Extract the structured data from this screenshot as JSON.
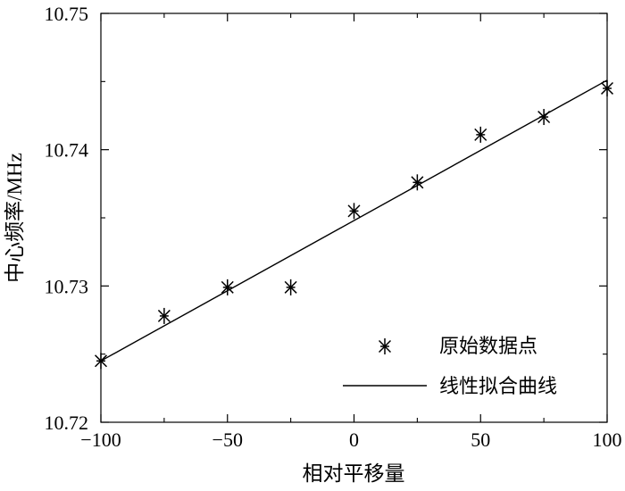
{
  "chart_data": {
    "type": "scatter",
    "xlabel": "相对平移量",
    "ylabel": "中心频率/MHz",
    "xlim": [
      -100,
      100
    ],
    "ylim": [
      10.72,
      10.75
    ],
    "xticks": [
      -100,
      -50,
      0,
      50,
      100
    ],
    "xtick_labels": [
      "−100",
      "−50",
      "0",
      "50",
      "100"
    ],
    "yticks": [
      10.72,
      10.73,
      10.74,
      10.75
    ],
    "ytick_labels": [
      "10.72",
      "10.73",
      "10.74",
      "10.75"
    ],
    "grid": false,
    "legend_position": "bottom-right",
    "series": [
      {
        "name": "原始数据点",
        "kind": "scatter",
        "marker": "asterisk",
        "color": "#000000",
        "x": [
          -100,
          -75,
          -50,
          -25,
          0,
          25,
          50,
          75,
          100
        ],
        "y": [
          10.7245,
          10.7278,
          10.7299,
          10.7299,
          10.7355,
          10.7376,
          10.7411,
          10.7424,
          10.7445
        ]
      },
      {
        "name": "线性拟合曲线",
        "kind": "line",
        "color": "#000000",
        "x": [
          -100,
          100
        ],
        "y": [
          10.7245,
          10.7451
        ]
      }
    ]
  }
}
